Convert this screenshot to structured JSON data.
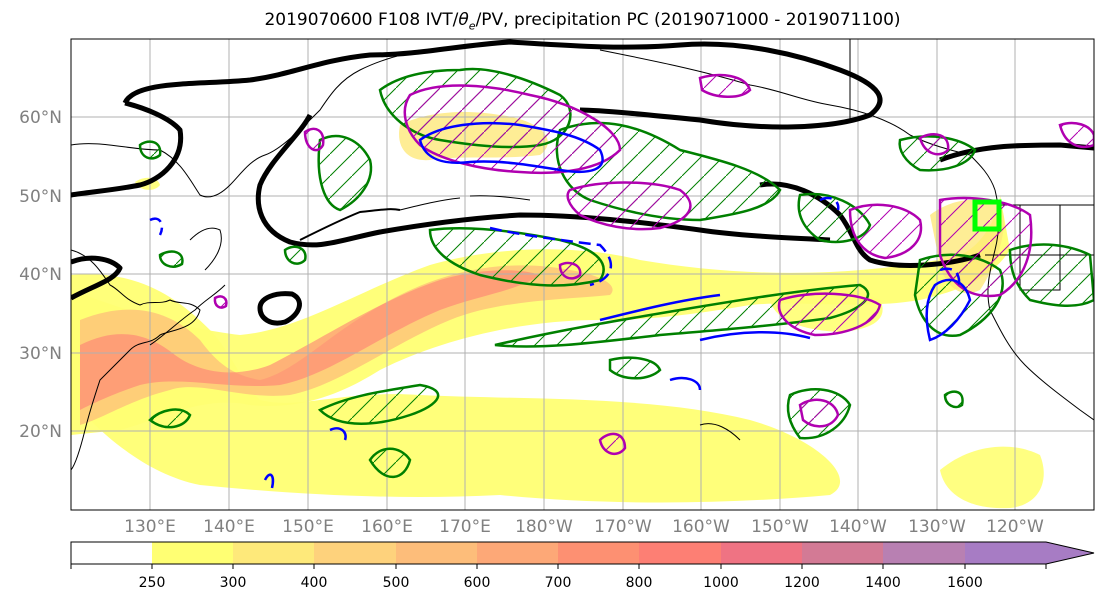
{
  "title": {
    "prefix": "2019070600 F108 IVT/",
    "theta": "θ",
    "theta_sub": "e",
    "suffix": "/PV, precipitation PC (2019071000 - 2019071100)"
  },
  "map": {
    "lon_ticks": [
      "130°E",
      "140°E",
      "150°E",
      "160°E",
      "170°E",
      "180°W",
      "170°W",
      "160°W",
      "150°W",
      "140°W",
      "130°W",
      "120°W"
    ],
    "lat_ticks": [
      "60°N",
      "50°N",
      "40°N",
      "30°N",
      "20°N"
    ],
    "lon_range": [
      120,
      250
    ],
    "lat_range": [
      10,
      70
    ],
    "tick_color": "#808080",
    "grid_color": "#b0b0b0"
  },
  "colorbar": {
    "labels": [
      "250",
      "300",
      "400",
      "500",
      "600",
      "700",
      "800",
      "1000",
      "1200",
      "1400",
      "1600"
    ],
    "colors": [
      "#ffffff",
      "#ffff73",
      "#fee97a",
      "#fed27c",
      "#fdbd7a",
      "#fda877",
      "#fd9072",
      "#fd7f74",
      "#ef7383",
      "#d37a95",
      "#b880b2",
      "#a77cc4",
      "#a77cc4"
    ]
  },
  "legend_colors": {
    "ivt_fill": "#fdbd7a",
    "pv_contour": "#000000",
    "theta_contour": "#0000ff",
    "precip_contour": "#008000",
    "pc_contour": "#b000b0",
    "target_box": "#00ff00"
  }
}
